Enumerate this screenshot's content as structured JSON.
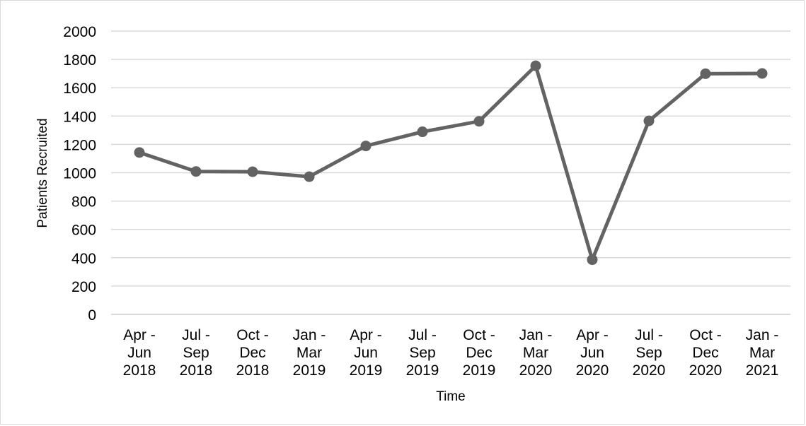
{
  "chart_data": {
    "type": "line",
    "title": "",
    "xlabel": "Time",
    "ylabel": "Patients Recruited",
    "ylim": [
      0,
      2000
    ],
    "yticks": [
      "0",
      "200",
      "400",
      "600",
      "800",
      "1000",
      "1200",
      "1400",
      "1600",
      "1800",
      "2000"
    ],
    "categories": [
      [
        "Apr -",
        "Jun",
        "2018"
      ],
      [
        "Jul -",
        "Sep",
        "2018"
      ],
      [
        "Oct -",
        "Dec",
        "2018"
      ],
      [
        "Jan -",
        "Mar",
        "2019"
      ],
      [
        "Apr -",
        "Jun",
        "2019"
      ],
      [
        "Jul -",
        "Sep",
        "2019"
      ],
      [
        "Oct -",
        "Dec",
        "2019"
      ],
      [
        "Jan -",
        "Mar",
        "2020"
      ],
      [
        "Apr -",
        "Jun",
        "2020"
      ],
      [
        "Jul -",
        "Sep",
        "2020"
      ],
      [
        "Oct -",
        "Dec",
        "2020"
      ],
      [
        "Jan -",
        "Mar",
        "2021"
      ]
    ],
    "series": [
      {
        "values": [
          1143,
          1009,
          1007,
          972,
          1189,
          1289,
          1363,
          1755,
          386,
          1366,
          1699,
          1701
        ]
      }
    ],
    "grid": true,
    "legend": "none",
    "colors": {
      "line": "#636363",
      "grid": "#d9d9d9",
      "axis": "#d9d9d9"
    }
  }
}
